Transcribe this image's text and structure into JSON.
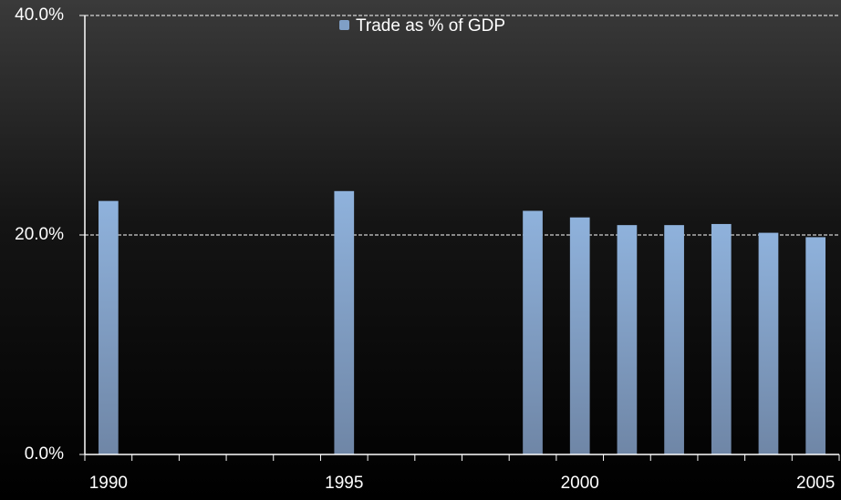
{
  "chart_data": {
    "type": "bar",
    "series": [
      {
        "name": "Trade as % of GDP",
        "color": "#7f9fc6",
        "values": [
          23.1,
          24.0,
          22.2,
          21.6,
          20.9,
          20.9,
          21.0,
          20.2,
          19.8
        ]
      }
    ],
    "x": [
      1990,
      1995,
      1999,
      2000,
      2001,
      2002,
      2003,
      2004,
      2005
    ],
    "xlim": [
      1989.5,
      2005.5
    ],
    "xticks": [
      1990,
      1995,
      2000,
      2005
    ],
    "ylim": [
      0,
      40
    ],
    "yticks": [
      {
        "value": 0,
        "label": "0.0%"
      },
      {
        "value": 20,
        "label": "20.0%"
      },
      {
        "value": 40,
        "label": "40.0%"
      }
    ],
    "grid": true,
    "legend": "top"
  }
}
